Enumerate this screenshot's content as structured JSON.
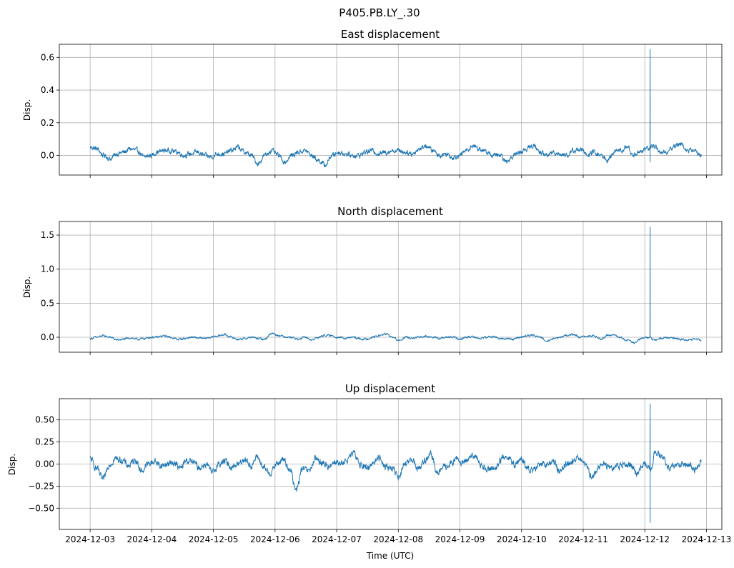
{
  "figure": {
    "title": "P405.PB.LY_.30"
  },
  "chart_data": [
    {
      "type": "line",
      "title": "East displacement",
      "ylabel": "Disp.",
      "xlabel": "",
      "xlim": [
        "2024-12-02T12:00",
        "2024-12-13T06:00"
      ],
      "ylim": [
        -0.12,
        0.68
      ],
      "yticks": [
        0.0,
        0.2,
        0.4,
        0.6
      ],
      "ytick_labels": [
        "0.0",
        "0.2",
        "0.4",
        "0.6"
      ],
      "xticks": [
        "2024-12-03",
        "2024-12-04",
        "2024-12-05",
        "2024-12-06",
        "2024-12-07",
        "2024-12-08",
        "2024-12-09",
        "2024-12-10",
        "2024-12-11",
        "2024-12-12",
        "2024-12-13"
      ],
      "xtick_labels": [],
      "grid": true,
      "series": [
        {
          "color": "#1f77b4",
          "x_start": "2024-12-03T00:00",
          "x_end": "2024-12-12T22:00",
          "baseline": [
            0.05,
            0.04,
            0.0,
            -0.02,
            0.01,
            0.02,
            0.04,
            0.03,
            -0.01,
            0.0,
            0.02,
            0.03,
            0.03,
            0.02,
            0.0,
            0.01,
            0.02,
            0.0,
            -0.01,
            0.01,
            0.01,
            0.03,
            0.05,
            0.02,
            0.0,
            -0.05,
            0.0,
            0.03,
            0.0,
            -0.04,
            0.0,
            0.02,
            0.03,
            0.0,
            -0.03,
            -0.06,
            0.0,
            0.02,
            0.01,
            0.0,
            0.0,
            0.02,
            0.03,
            0.01,
            0.02,
            0.03,
            0.03,
            0.02,
            0.01,
            0.04,
            0.06,
            0.03,
            0.0,
            0.01,
            -0.01,
            0.0,
            0.03,
            0.06,
            0.04,
            0.02,
            0.0,
            0.0,
            -0.04,
            0.0,
            0.02,
            0.04,
            0.06,
            0.02,
            0.0,
            0.02,
            0.01,
            0.0,
            0.03,
            0.04,
            0.0,
            0.02,
            0.0,
            -0.03,
            0.02,
            0.03,
            0.05,
            0.0,
            0.03,
            0.04,
            0.06,
            0.02,
            0.02,
            0.06,
            0.07,
            0.03,
            0.03,
            0.0
          ],
          "noise": 0.012,
          "spikes": [
            {
              "x": "2024-12-12T02:05",
              "values": [
                0.65,
                -0.04,
                0.3,
                0.07
              ]
            }
          ]
        }
      ]
    },
    {
      "type": "line",
      "title": "North displacement",
      "ylabel": "Disp.",
      "xlabel": "",
      "xlim": [
        "2024-12-02T12:00",
        "2024-12-13T06:00"
      ],
      "ylim": [
        -0.22,
        1.7
      ],
      "yticks": [
        0.0,
        0.5,
        1.0,
        1.5
      ],
      "ytick_labels": [
        "0.0",
        "0.5",
        "1.0",
        "1.5"
      ],
      "xticks": [
        "2024-12-03",
        "2024-12-04",
        "2024-12-05",
        "2024-12-06",
        "2024-12-07",
        "2024-12-08",
        "2024-12-09",
        "2024-12-10",
        "2024-12-11",
        "2024-12-12",
        "2024-12-13"
      ],
      "xtick_labels": [],
      "grid": true,
      "series": [
        {
          "color": "#1f77b4",
          "x_start": "2024-12-03T00:00",
          "x_end": "2024-12-12T22:00",
          "baseline": [
            -0.02,
            0.0,
            0.02,
            0.0,
            -0.04,
            -0.03,
            -0.01,
            -0.03,
            -0.02,
            0.0,
            0.0,
            0.02,
            0.0,
            -0.03,
            -0.02,
            0.0,
            -0.01,
            -0.02,
            0.0,
            0.02,
            0.04,
            0.0,
            -0.03,
            -0.02,
            0.0,
            -0.02,
            -0.03,
            0.06,
            0.03,
            0.01,
            0.0,
            -0.03,
            0.0,
            -0.04,
            0.0,
            0.03,
            0.02,
            0.0,
            -0.02,
            0.0,
            -0.02,
            -0.03,
            0.0,
            0.02,
            0.05,
            0.0,
            -0.05,
            0.0,
            -0.02,
            0.0,
            0.02,
            0.0,
            -0.02,
            0.0,
            0.0,
            -0.03,
            0.0,
            0.01,
            -0.02,
            0.0,
            0.01,
            -0.02,
            -0.02,
            -0.03,
            0.0,
            0.02,
            0.03,
            0.0,
            -0.05,
            -0.02,
            0.0,
            0.03,
            0.04,
            0.0,
            0.01,
            0.02,
            -0.03,
            0.03,
            0.03,
            0.0,
            -0.05,
            -0.08,
            -0.02,
            0.0,
            -0.04,
            -0.02,
            0.0,
            -0.02,
            -0.03,
            -0.04,
            -0.03,
            -0.04
          ],
          "noise": 0.012,
          "spikes": [
            {
              "x": "2024-12-12T02:05",
              "values": [
                1.62,
                0.0,
                0.45,
                0.03
              ]
            }
          ]
        }
      ]
    },
    {
      "type": "line",
      "title": "Up displacement",
      "ylabel": "Disp.",
      "xlabel": "Time (UTC)",
      "xlim": [
        "2024-12-02T12:00",
        "2024-12-13T06:00"
      ],
      "ylim": [
        -0.74,
        0.74
      ],
      "yticks": [
        -0.5,
        -0.25,
        0.0,
        0.25,
        0.5
      ],
      "ytick_labels": [
        "−0.50",
        "−0.25",
        "0.00",
        "0.25",
        "0.50"
      ],
      "xticks": [
        "2024-12-03",
        "2024-12-04",
        "2024-12-05",
        "2024-12-06",
        "2024-12-07",
        "2024-12-08",
        "2024-12-09",
        "2024-12-10",
        "2024-12-11",
        "2024-12-12",
        "2024-12-13"
      ],
      "xtick_labels": [
        "2024-12-03",
        "2024-12-04",
        "2024-12-05",
        "2024-12-06",
        "2024-12-07",
        "2024-12-08",
        "2024-12-09",
        "2024-12-10",
        "2024-12-11",
        "2024-12-12",
        "2024-12-13"
      ],
      "grid": true,
      "series": [
        {
          "color": "#1f77b4",
          "x_start": "2024-12-03T00:00",
          "x_end": "2024-12-12T22:00",
          "baseline": [
            0.06,
            -0.05,
            -0.18,
            0.0,
            0.06,
            0.04,
            -0.02,
            0.05,
            -0.08,
            0.0,
            0.03,
            -0.02,
            0.0,
            0.02,
            -0.05,
            0.04,
            0.02,
            -0.04,
            0.0,
            -0.1,
            0.0,
            0.03,
            -0.03,
            0.0,
            0.06,
            -0.02,
            0.08,
            -0.05,
            -0.1,
            0.0,
            0.05,
            -0.05,
            -0.3,
            -0.06,
            -0.08,
            0.05,
            0.02,
            -0.03,
            0.03,
            0.0,
            0.05,
            0.12,
            0.0,
            -0.05,
            0.02,
            0.07,
            -0.03,
            -0.05,
            -0.15,
            0.0,
            0.05,
            -0.05,
            0.04,
            0.1,
            -0.1,
            -0.04,
            0.0,
            0.06,
            0.0,
            0.08,
            0.08,
            -0.03,
            -0.05,
            -0.04,
            0.06,
            0.08,
            0.0,
            0.05,
            -0.05,
            -0.08,
            0.0,
            0.0,
            0.03,
            -0.08,
            0.0,
            0.03,
            0.08,
            -0.02,
            -0.15,
            -0.05,
            0.0,
            -0.05,
            -0.02,
            0.0,
            0.0,
            -0.1,
            0.0,
            -0.05,
            0.15,
            0.06,
            -0.05,
            -0.02,
            0.0,
            0.0,
            -0.07,
            0.03
          ],
          "noise": 0.03,
          "spikes": [
            {
              "x": "2024-12-12T02:05",
              "values": [
                0.68,
                -0.66,
                0.2,
                -0.18
              ]
            }
          ]
        }
      ]
    }
  ]
}
